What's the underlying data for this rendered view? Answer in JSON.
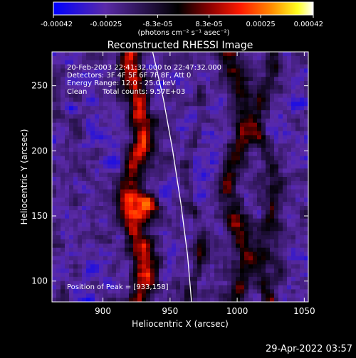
{
  "chart_data": {
    "type": "heatmap",
    "title": "Reconstructed RHESSI Image",
    "xlabel": "Heliocentric X (arcsec)",
    "ylabel": "Heliocentric Y (arcsec)",
    "xlim": [
      862,
      1053
    ],
    "ylim": [
      84,
      276
    ],
    "x_ticks": [
      900,
      950,
      1000,
      1050
    ],
    "y_ticks": [
      100,
      150,
      200,
      250
    ],
    "x_tick_labels": [
      "900",
      "950",
      "1000",
      "1050"
    ],
    "y_tick_labels": [
      "100",
      "150",
      "200",
      "250"
    ],
    "colorbar": {
      "range": [
        -0.00042,
        0.00042
      ],
      "ticks": [
        -0.00042,
        -0.00025,
        -8.3e-05,
        8.3e-05,
        0.00025,
        0.00042
      ],
      "tick_labels": [
        "-0.00042",
        "-0.00025",
        "-8.3e-05",
        "8.3e-05",
        "0.00025",
        "0.00042"
      ],
      "units_label": "(photons cm⁻² s⁻¹ asec⁻²)",
      "colors": [
        "#0000ff",
        "#5a2aa8",
        "#000000",
        "#7a0000",
        "#ff0000",
        "#ff8800",
        "#ffff00",
        "#ffffff"
      ]
    },
    "annotations": {
      "time_range": "20-Feb-2003 22:41:32.000 to 22:47:32.000",
      "detectors": "Detectors: 3F 4F 5F 6F 7F 8F, Att 0",
      "energy": "Energy Range: 12.0 - 25.0 keV",
      "method": "Clean",
      "counts": "Total counts: 9.57E+03",
      "peak": "Position of Peak = [933,158]"
    },
    "limb": [
      [
        937,
        276
      ],
      [
        945,
        240
      ],
      [
        952,
        200
      ],
      [
        958,
        160
      ],
      [
        963,
        120
      ],
      [
        966,
        84
      ]
    ],
    "peak_position": [
      933,
      158
    ]
  },
  "footer_timestamp": "29-Apr-2022 03:57"
}
